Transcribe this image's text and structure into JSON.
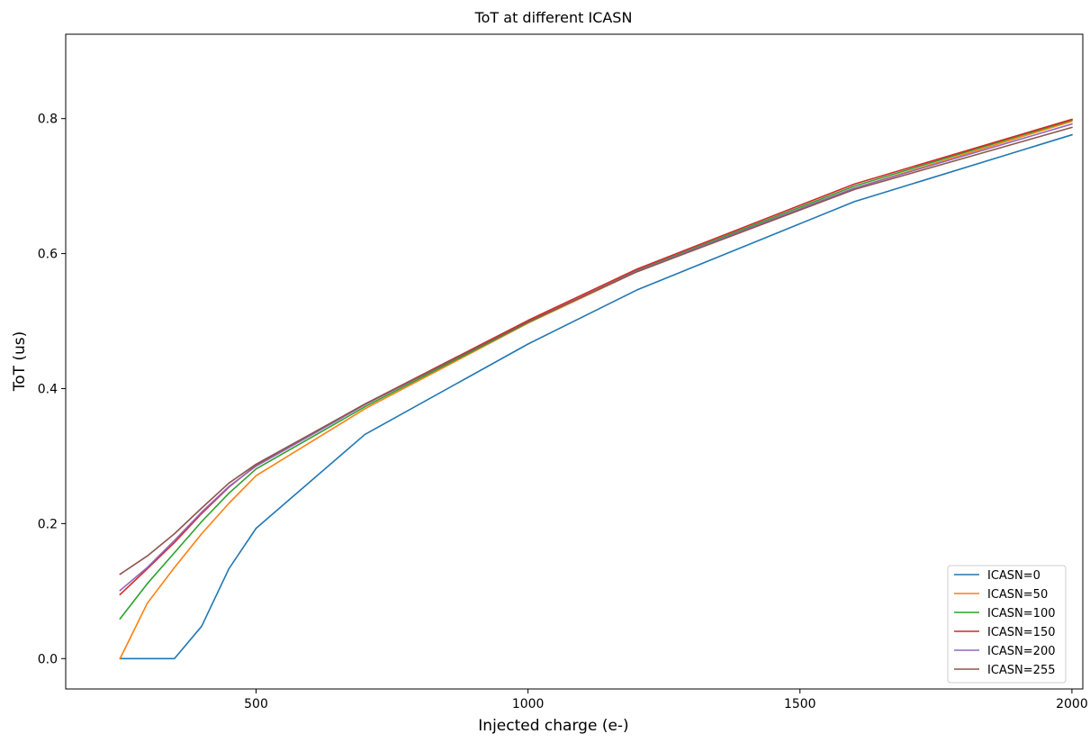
{
  "chart_data": {
    "type": "line",
    "title": "ToT at different ICASN",
    "xlabel": "Injected charge (e-)",
    "ylabel": "ToT (us)",
    "xlim": [
      150,
      2020
    ],
    "ylim": [
      -0.045,
      0.925
    ],
    "x_ticks": [
      500,
      1000,
      1500,
      2000
    ],
    "x_tick_labels": [
      "500",
      "1000",
      "1500",
      "2000"
    ],
    "y_ticks": [
      0.0,
      0.2,
      0.4,
      0.6,
      0.8
    ],
    "y_tick_labels": [
      "0.0",
      "0.2",
      "0.4",
      "0.6",
      "0.8"
    ],
    "grid": false,
    "legend_position": "lower right",
    "x": [
      250,
      300,
      350,
      400,
      450,
      500,
      700,
      1000,
      1200,
      1600,
      2000
    ],
    "series": [
      {
        "name": "ICASN=0",
        "color": "#1f77b4",
        "values": [
          0.0,
          0.0,
          0.0,
          0.048,
          0.133,
          0.193,
          0.332,
          0.466,
          0.546,
          0.677,
          0.776
        ]
      },
      {
        "name": "ICASN=50",
        "color": "#ff7f0e",
        "values": [
          0.0,
          0.082,
          0.135,
          0.185,
          0.23,
          0.271,
          0.37,
          0.497,
          0.573,
          0.697,
          0.796
        ]
      },
      {
        "name": "ICASN=100",
        "color": "#2ca02c",
        "values": [
          0.059,
          0.111,
          0.157,
          0.203,
          0.245,
          0.281,
          0.373,
          0.498,
          0.575,
          0.7,
          0.798
        ]
      },
      {
        "name": "ICASN=150",
        "color": "#d62728",
        "values": [
          0.095,
          0.133,
          0.172,
          0.215,
          0.254,
          0.286,
          0.377,
          0.501,
          0.577,
          0.703,
          0.799
        ]
      },
      {
        "name": "ICASN=200",
        "color": "#9467bd",
        "values": [
          0.101,
          0.135,
          0.175,
          0.217,
          0.255,
          0.285,
          0.376,
          0.499,
          0.574,
          0.697,
          0.792
        ]
      },
      {
        "name": "ICASN=255",
        "color": "#8c564b",
        "values": [
          0.125,
          0.152,
          0.185,
          0.223,
          0.26,
          0.288,
          0.377,
          0.499,
          0.573,
          0.695,
          0.787
        ]
      }
    ]
  }
}
